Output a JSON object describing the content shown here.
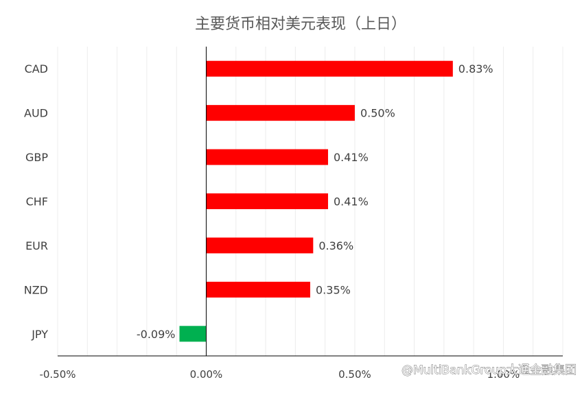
{
  "chart_data": {
    "type": "bar",
    "orientation": "horizontal",
    "title": "主要货币相对美元表现（上日）",
    "categories": [
      "CAD",
      "AUD",
      "GBP",
      "CHF",
      "EUR",
      "NZD",
      "JPY"
    ],
    "values": [
      0.83,
      0.5,
      0.41,
      0.41,
      0.36,
      0.35,
      -0.09
    ],
    "data_labels": [
      "0.83%",
      "0.50%",
      "0.41%",
      "0.41%",
      "0.36%",
      "0.35%",
      "-0.09%"
    ],
    "xlim": [
      -0.5,
      1.2
    ],
    "ticks": [
      -0.5,
      0,
      0.5,
      1.0
    ],
    "tick_labels": [
      "-0.50%",
      "0.00%",
      "0.50%",
      "1.00%"
    ],
    "colors": {
      "positive": "#ff0000",
      "negative": "#00b050",
      "gridline": "#ececec",
      "axis": "#000000"
    },
    "grid": true,
    "legend": "none"
  },
  "watermark": "@MultiBankGroup大通金融集团"
}
